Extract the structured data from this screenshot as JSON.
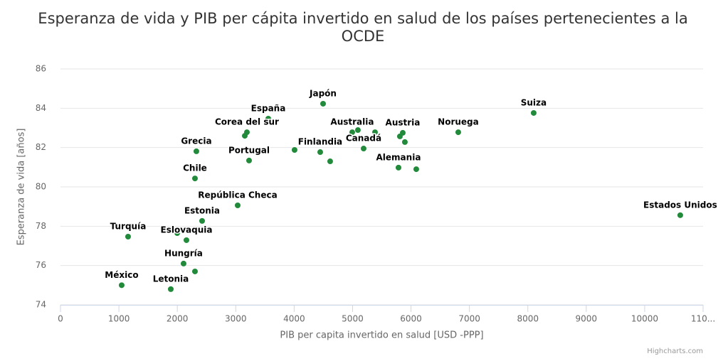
{
  "chart_data": {
    "type": "scatter",
    "title": "Esperanza de vida y PIB per cápita invertido en salud de los países pertenecientes a la OCDE",
    "x_label": "PIB per capita invertido en salud [USD -PPP]",
    "y_label": "Esperanza de vida [años]",
    "credits": "Highcharts.com",
    "color": "#228b3b",
    "grid": true,
    "xlim": [
      0,
      11000
    ],
    "ylim": [
      74,
      86
    ],
    "xticks": [
      0,
      1000,
      2000,
      3000,
      4000,
      5000,
      6000,
      7000,
      8000,
      9000,
      10000,
      {
        "value": 11000,
        "label": "110..."
      }
    ],
    "yticks": [
      74,
      76,
      78,
      80,
      82,
      84,
      86
    ],
    "x": [
      1047,
      1157,
      1888,
      2107,
      2302,
      2156,
      1998,
      2424,
      3033,
      2302,
      2326,
      3228,
      3191,
      3155,
      3557,
      4495,
      4446,
      4616,
      4007,
      4994,
      5091,
      5189,
      5384,
      5859,
      5810,
      5895,
      5786,
      6090,
      6809,
      8100,
      10609
    ],
    "values": [
      75.0,
      77.47,
      74.8,
      76.1,
      75.7,
      77.29,
      77.65,
      78.27,
      79.06,
      80.43,
      81.81,
      81.34,
      82.78,
      82.6,
      83.47,
      84.23,
      81.77,
      81.3,
      81.88,
      82.78,
      82.89,
      81.95,
      82.78,
      82.75,
      82.57,
      82.28,
      80.98,
      80.9,
      82.78,
      83.76,
      78.56
    ],
    "point_labels": [
      "México",
      "Turquía",
      "Letonia",
      "Hungría",
      null,
      "Eslovaquia",
      null,
      "Estonia",
      "República Checa",
      "Chile",
      "Grecia",
      "Portugal",
      "Corea del sur",
      null,
      "España",
      "Japón",
      "Finlandia",
      null,
      null,
      "Australia",
      null,
      "Canadá",
      null,
      "Austria",
      null,
      null,
      "Alemania",
      null,
      "Noruega",
      "Suiza",
      "Estados Unidos"
    ]
  }
}
